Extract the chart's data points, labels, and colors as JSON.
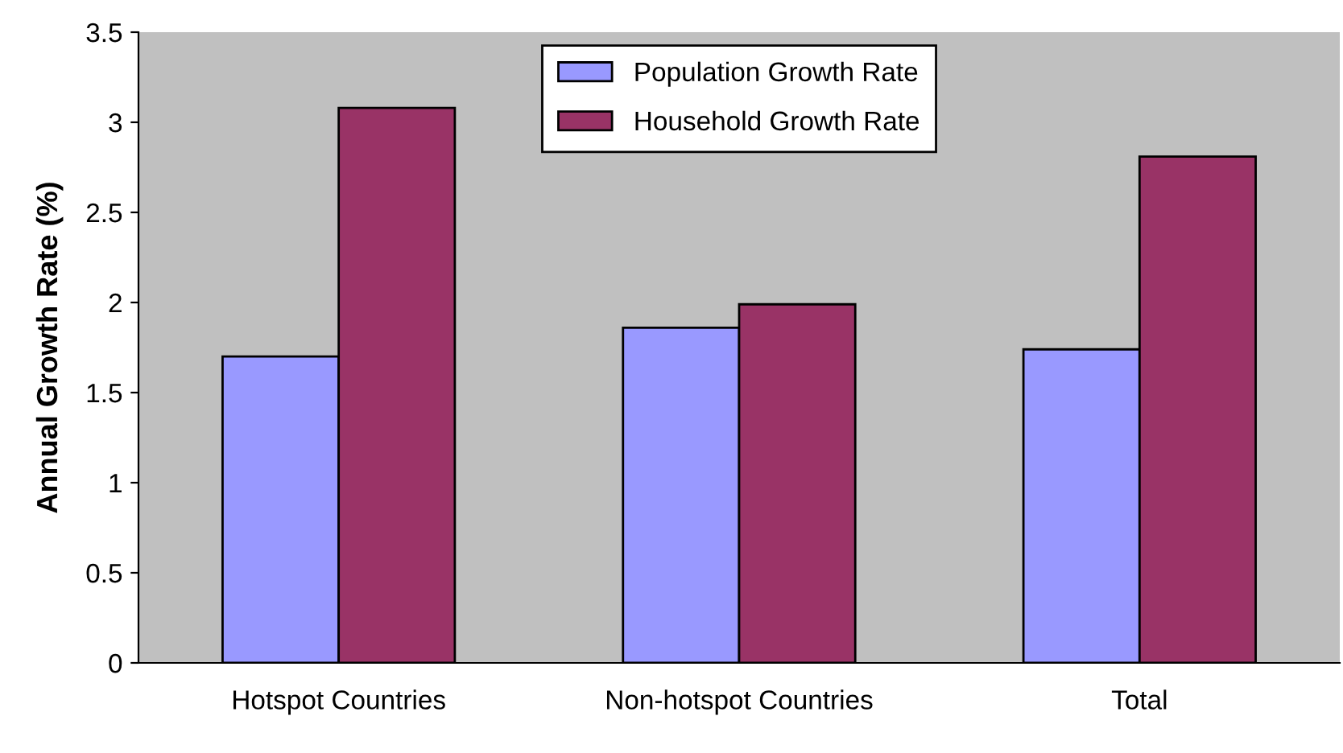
{
  "chart_data": {
    "type": "bar",
    "ylabel": "Annual Growth Rate (%)",
    "categories": [
      "Hotspot Countries",
      "Non-hotspot Countries",
      "Total"
    ],
    "series": [
      {
        "name": "Population Growth Rate",
        "color": "#9999ff",
        "values": [
          1.7,
          1.86,
          1.74
        ]
      },
      {
        "name": "Household Growth Rate",
        "color": "#993366",
        "values": [
          3.08,
          1.99,
          2.81
        ]
      }
    ],
    "ylim": [
      0,
      3.5
    ],
    "yticks": [
      0,
      0.5,
      1,
      1.5,
      2,
      2.5,
      3,
      3.5
    ],
    "grid": false,
    "legend": "top"
  }
}
